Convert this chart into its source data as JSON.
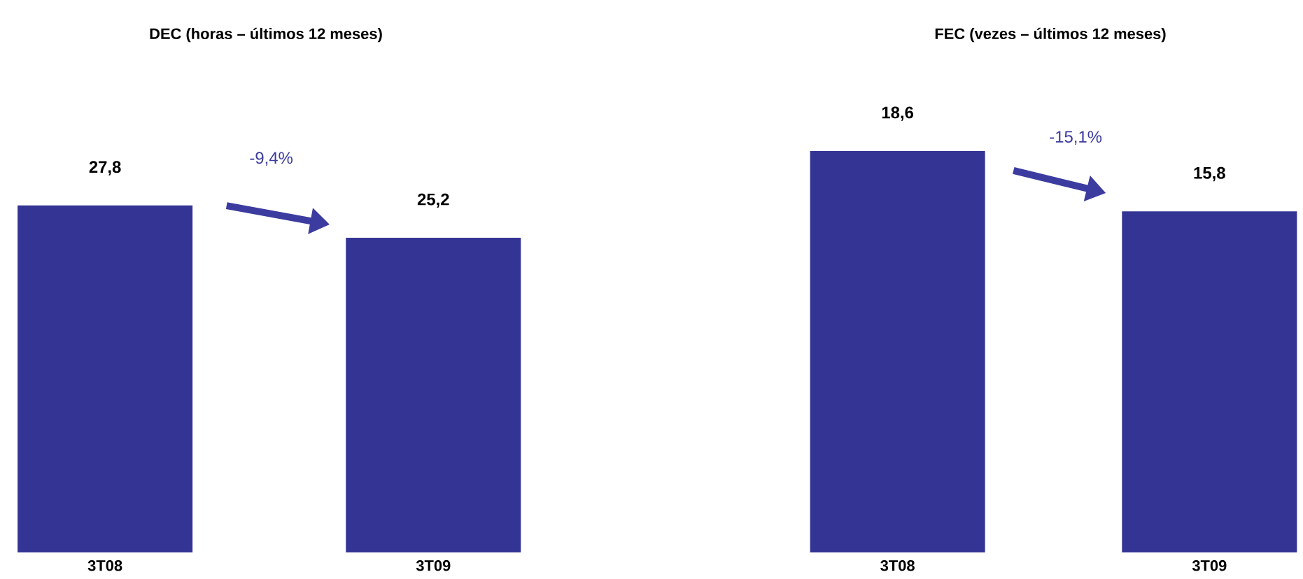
{
  "chart_data": [
    {
      "type": "bar",
      "title": "DEC (horas – últimos 12 meses)",
      "categories": [
        "3T08",
        "3T09"
      ],
      "values": [
        27.8,
        25.2
      ],
      "value_labels": [
        "27,8",
        "25,2"
      ],
      "color": "#343494",
      "annotations": [
        "-9,4%"
      ]
    },
    {
      "type": "bar",
      "title": "FEC (vezes – últimos 12 meses)",
      "categories": [
        "3T08",
        "3T09"
      ],
      "values": [
        18.6,
        15.8
      ],
      "value_labels": [
        "18,6",
        "15,8"
      ],
      "color": "#343494",
      "annotations": [
        "-15,1%"
      ]
    }
  ]
}
